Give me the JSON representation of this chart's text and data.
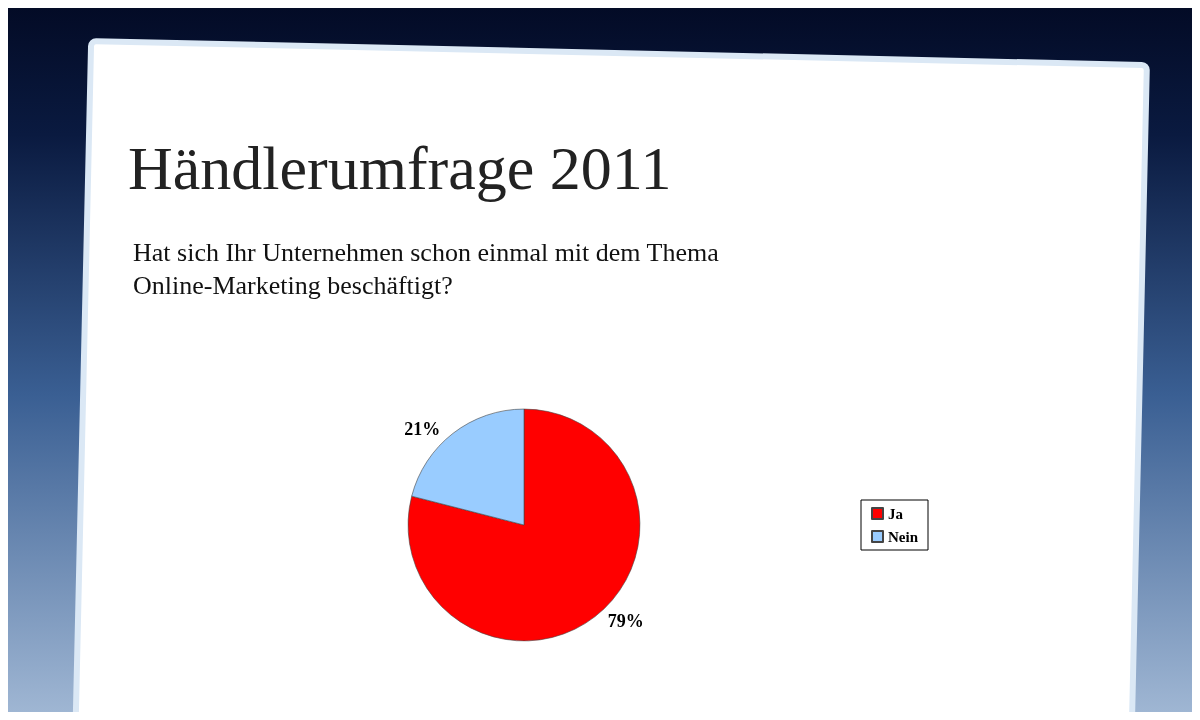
{
  "chart_data": {
    "type": "pie",
    "title": "Händlerumfrage 2011",
    "subtitle": "Hat sich Ihr Unternehmen schon einmal mit dem Thema\nOnline-Marketing beschäftigt?",
    "categories": [
      "Ja",
      "Nein"
    ],
    "values": [
      79,
      21
    ],
    "colors": [
      "#ff0000",
      "#99ccff"
    ],
    "value_labels": [
      "79%",
      "21%"
    ],
    "legend": "right"
  }
}
